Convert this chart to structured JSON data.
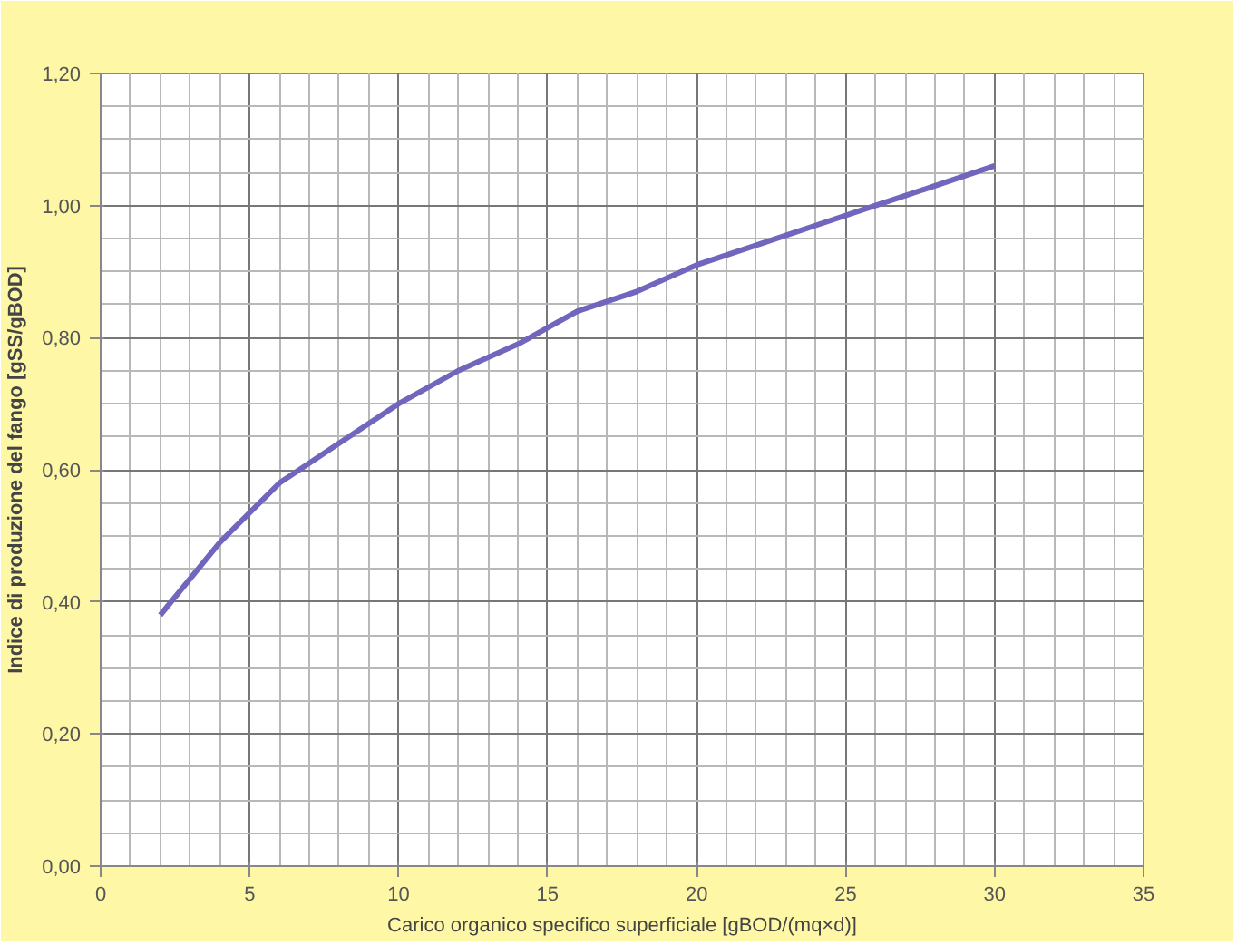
{
  "chart_data": {
    "type": "line",
    "xlabel": "Carico organico specifico superficiale [gBOD/(mq×d)]",
    "ylabel": "Indice di produzione del fango [gSS/gBOD]",
    "x": [
      2,
      4,
      6,
      8,
      10,
      12,
      14,
      16,
      18,
      20,
      22,
      24,
      26,
      28,
      30
    ],
    "series": [
      {
        "color": "#7066bd",
        "values": [
          0.38,
          0.49,
          0.58,
          0.64,
          0.7,
          0.75,
          0.79,
          0.84,
          0.87,
          0.91,
          0.94,
          0.97,
          1.0,
          1.03,
          1.06
        ]
      }
    ],
    "xlim": [
      0,
      35
    ],
    "xticks": [
      0,
      5,
      10,
      15,
      20,
      25,
      30,
      35
    ],
    "ylim": [
      0,
      1.2
    ],
    "yticks": [
      {
        "value": 0,
        "label": "0,00"
      },
      {
        "value": 0.2,
        "label": "0,20"
      },
      {
        "value": 0.4,
        "label": "0,40"
      },
      {
        "value": 0.6,
        "label": "0,60"
      },
      {
        "value": 0.8,
        "label": "0,80"
      },
      {
        "value": 1.0,
        "label": "1,00"
      },
      {
        "value": 1.2,
        "label": "1,20"
      }
    ],
    "grid": true,
    "marker": "none",
    "line_style": "solid"
  }
}
